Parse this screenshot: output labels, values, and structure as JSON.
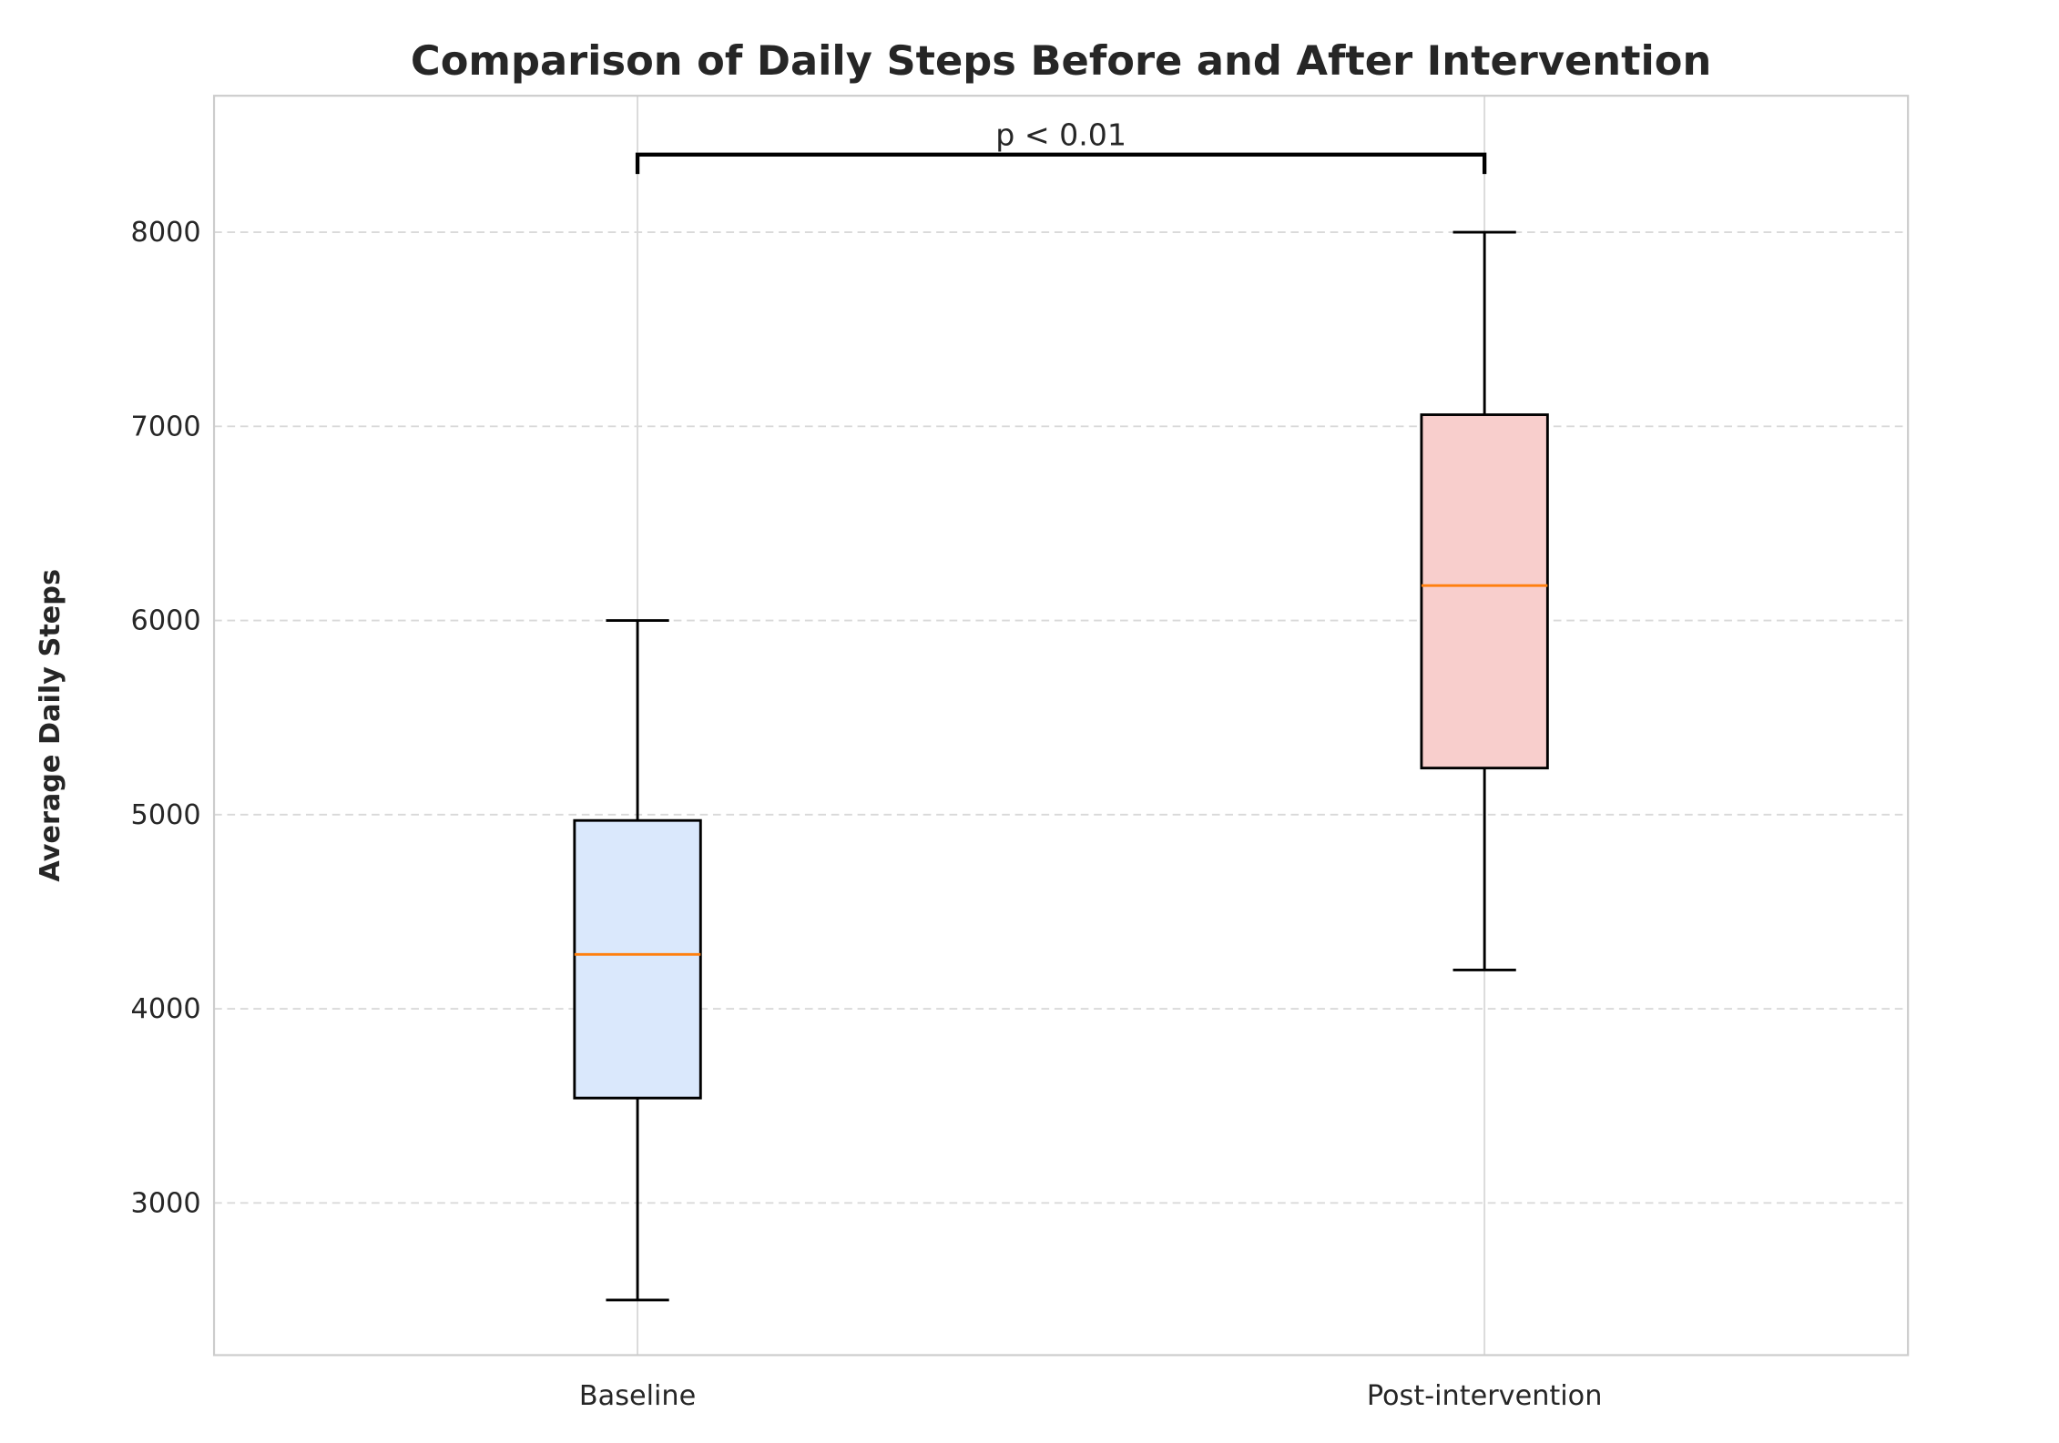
{
  "chart_data": {
    "type": "box",
    "title": "Comparison of Daily Steps Before and After Intervention",
    "xlabel": "",
    "ylabel": "Average Daily Steps",
    "categories": [
      "Baseline",
      "Post-intervention"
    ],
    "series": [
      {
        "category": "Baseline",
        "whisker_low": 2500,
        "q1": 3540,
        "median": 4280,
        "q3": 4970,
        "whisker_high": 6000,
        "fill": "#dae8fc"
      },
      {
        "category": "Post-intervention",
        "whisker_low": 4200,
        "q1": 5240,
        "median": 6180,
        "q3": 7060,
        "whisker_high": 8000,
        "fill": "#f8cecc"
      }
    ],
    "yticks": [
      3000,
      4000,
      5000,
      6000,
      7000,
      8000
    ],
    "ylim": [
      2216,
      8703
    ],
    "xlim": [
      0.5,
      2.5
    ],
    "grid": {
      "y": true,
      "y_style": "dashed",
      "x": true
    },
    "median_color": "#ff7f0e",
    "annotation": {
      "text": "p < 0.01",
      "bracket_y": 8400,
      "bracket_tick_bottom": 8300,
      "between": [
        "Baseline",
        "Post-intervention"
      ]
    }
  }
}
